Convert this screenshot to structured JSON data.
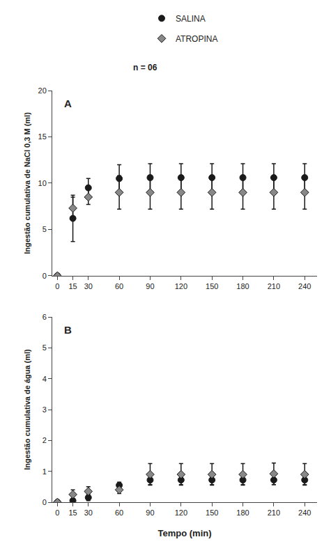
{
  "chart_data": [
    {
      "type": "scatter",
      "title": "A",
      "x": [
        0,
        15,
        30,
        60,
        90,
        120,
        150,
        180,
        210,
        240
      ],
      "xlim": [
        -5,
        252
      ],
      "xticks": [
        0,
        15,
        30,
        60,
        90,
        120,
        150,
        180,
        210,
        240
      ],
      "ylabel": "Ingestão cumulativa de NaCl 0,3 M (ml)",
      "ylim": [
        0,
        20
      ],
      "yticks": [
        0,
        5,
        10,
        15,
        20
      ],
      "grid": false,
      "legend": "top",
      "annotations": [
        "n = 06"
      ],
      "series": [
        {
          "name": "SALINA",
          "color": "#1a1a1a",
          "marker": "circle",
          "values": [
            0,
            6.2,
            9.5,
            10.5,
            10.6,
            10.6,
            10.6,
            10.6,
            10.6,
            10.6
          ],
          "errors": [
            0,
            2.5,
            1.0,
            1.5,
            1.5,
            1.5,
            1.5,
            1.5,
            1.5,
            1.5
          ]
        },
        {
          "name": "ATROPINA",
          "color": "#888888",
          "marker": "diamond",
          "values": [
            0,
            7.3,
            8.5,
            9.0,
            9.0,
            9.0,
            9.0,
            9.0,
            9.0,
            9.0
          ],
          "errors": [
            0,
            1.2,
            0.8,
            1.8,
            1.8,
            1.8,
            1.8,
            1.8,
            1.8,
            1.8
          ]
        }
      ]
    },
    {
      "type": "scatter",
      "title": "B",
      "x": [
        0,
        15,
        30,
        60,
        90,
        120,
        150,
        180,
        210,
        240
      ],
      "xlabel": "Tempo (min)",
      "xlim": [
        -5,
        252
      ],
      "xticks": [
        0,
        15,
        30,
        60,
        90,
        120,
        150,
        180,
        210,
        240
      ],
      "ylabel": "Ingestão cumulativa de água (ml)",
      "ylim": [
        0,
        6
      ],
      "yticks": [
        0,
        1,
        2,
        3,
        4,
        5,
        6
      ],
      "grid": false,
      "series": [
        {
          "name": "SALINA",
          "color": "#1a1a1a",
          "marker": "circle",
          "values": [
            0,
            0.05,
            0.15,
            0.55,
            0.72,
            0.72,
            0.72,
            0.72,
            0.72,
            0.72
          ],
          "errors": [
            0,
            0.05,
            0.1,
            0.1,
            0.15,
            0.15,
            0.15,
            0.15,
            0.15,
            0.15
          ]
        },
        {
          "name": "ATROPINA",
          "color": "#888888",
          "marker": "diamond",
          "values": [
            0,
            0.25,
            0.35,
            0.4,
            0.9,
            0.9,
            0.9,
            0.9,
            0.92,
            0.9
          ],
          "errors": [
            0,
            0.15,
            0.15,
            0.12,
            0.35,
            0.35,
            0.35,
            0.35,
            0.35,
            0.35
          ]
        }
      ]
    }
  ]
}
